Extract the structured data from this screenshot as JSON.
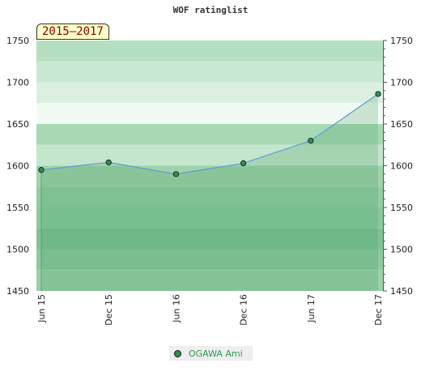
{
  "chart_data": {
    "type": "area",
    "title": "WOF ratinglist",
    "period_label": "2015–2017",
    "categories": [
      "Jun 15",
      "Dec 15",
      "Jun 16",
      "Dec 16",
      "Jun 17",
      "Dec 17"
    ],
    "series": [
      {
        "name": "OGAWA Ami",
        "values": [
          1595,
          1604,
          1590,
          1603,
          1630,
          1686
        ]
      }
    ],
    "ylim": [
      1450,
      1750
    ],
    "yticks": [
      1450,
      1500,
      1550,
      1600,
      1650,
      1700,
      1750
    ],
    "y_axis": "both sides",
    "legend_position": "bottom-center",
    "colors": {
      "line": "#5b9bd5",
      "fill": "#8fcf9f",
      "marker": "#2f8f52",
      "bands": [
        "#9ad3a8",
        "#8fcb9d",
        "#7fc393",
        "#a7d9b3",
        "#b9e2c3",
        "#cfe9d6",
        "#eaf6ee"
      ]
    }
  }
}
